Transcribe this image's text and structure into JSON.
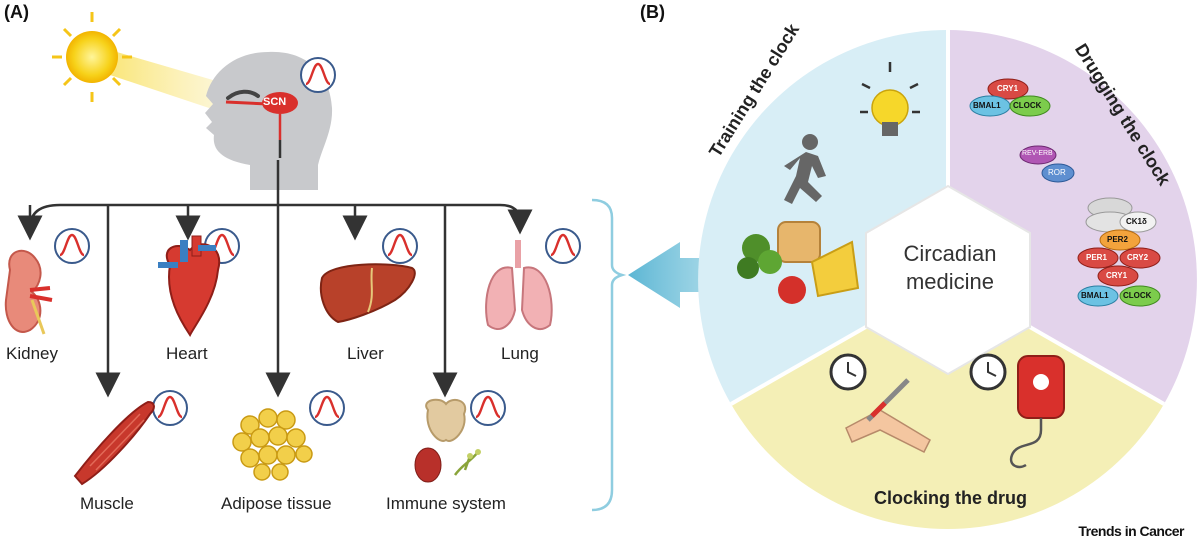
{
  "panel_a": {
    "label": "(A)",
    "brain_label": "SCN",
    "organs": {
      "kidney": "Kidney",
      "heart": "Heart",
      "liver": "Liver",
      "lung": "Lung",
      "muscle": "Muscle",
      "adipose": "Adipose tissue",
      "immune": "Immune system"
    }
  },
  "panel_b": {
    "label": "(B)",
    "center": "Circadian medicine",
    "center_line1": "Circadian",
    "center_line2": "medicine",
    "sectors": {
      "training": "Training the clock",
      "drugging": "Drugging the clock",
      "clocking": "Clocking the drug"
    },
    "proteins": {
      "cry1": "CRY1",
      "bmal1": "BMAL1",
      "clock": "CLOCK",
      "reverb": "REV-ERB",
      "ror": "ROR",
      "ck1d": "CK1δ",
      "per2": "PER2",
      "per1": "PER1",
      "cry2": "CRY2"
    }
  },
  "credit": "Trends in Cancer",
  "colors": {
    "rhythm_red": "#d9302c",
    "circle_blue": "#3a5a8c",
    "arrow_blue": "#7cc5dc",
    "sector_training": "#d8eef6",
    "sector_drugging": "#e3d3eb",
    "sector_clocking": "#f4efb6"
  }
}
